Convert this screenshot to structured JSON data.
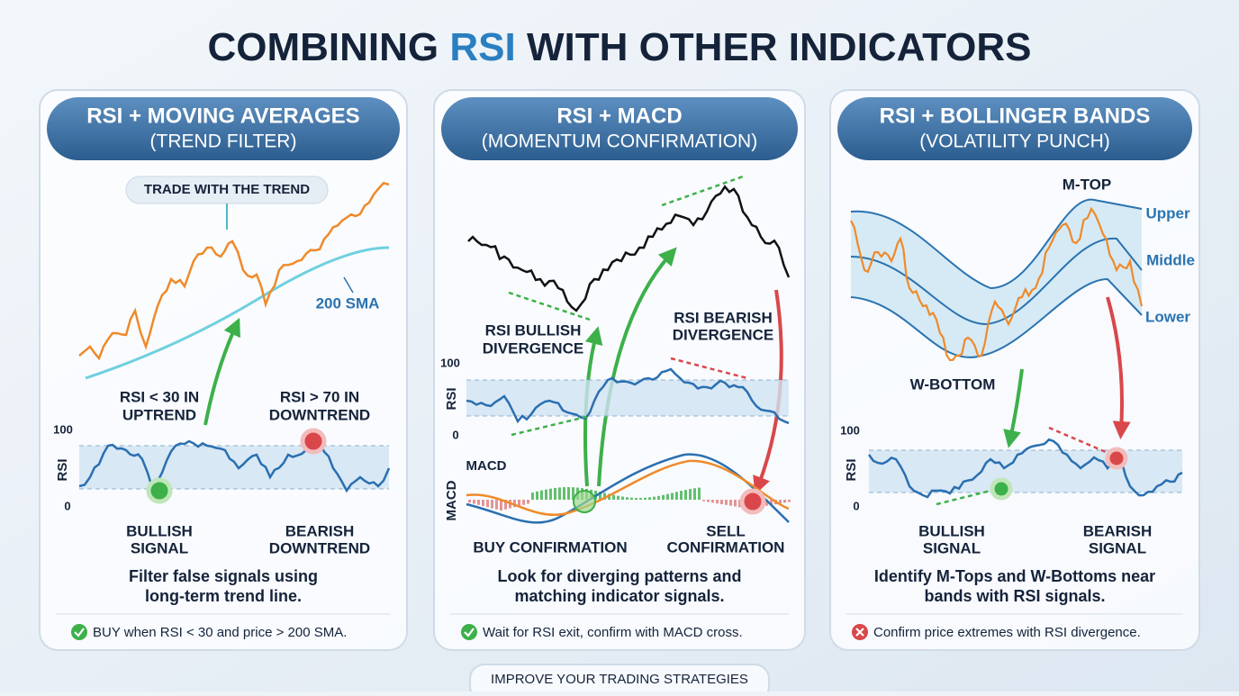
{
  "title": {
    "before": "COMBINING ",
    "highlight": "RSI",
    "after": " WITH OTHER INDICATORS"
  },
  "panels": [
    {
      "header": [
        "RSI + MOVING AVERAGES",
        "(TREND FILTER)"
      ],
      "labels": {
        "trend": "TRADE WITH THE TREND",
        "sma": "200 SMA",
        "left": [
          "RSI < 30 IN",
          "UPTREND"
        ],
        "right": [
          "RSI > 70 IN",
          "DOWNTREND"
        ],
        "axis": [
          "100",
          "RSI",
          "0"
        ],
        "bottom_left": [
          "BULLISH",
          "SIGNAL"
        ],
        "bottom_right": [
          "BEARISH",
          "DOWNTREND"
        ]
      },
      "description": [
        "Filter false signals using",
        "long-term trend line."
      ],
      "tip": "BUY when RSI < 30 and price > 200 SMA."
    },
    {
      "header": [
        "RSI + MACD",
        "(MOMENTUM CONFIRMATION)"
      ],
      "labels": {
        "left": [
          "RSI BULLISH",
          "DIVERGENCE"
        ],
        "right": [
          "RSI BEARISH",
          "DIVERGENCE"
        ],
        "axis": [
          "100",
          "RSI",
          "0"
        ],
        "macd": "MACD",
        "macd_axis": "MACD",
        "bottom_left": [
          "BUY CONFIRMATION"
        ],
        "bottom_right": [
          "SELL",
          "CONFIRMATION"
        ]
      },
      "description": [
        "Look for diverging patterns and",
        "matching indicator signals."
      ],
      "tip": "Wait for RSI exit, confirm with MACD cross."
    },
    {
      "header": [
        "RSI + BOLLINGER BANDS",
        "(VOLATILITY PUNCH)"
      ],
      "labels": {
        "mtop": "M-TOP",
        "upper": "Upper",
        "middle": "Middle",
        "lower": "Lower",
        "wbottom": "W-BOTTOM",
        "axis": [
          "100",
          "RSI",
          "0"
        ],
        "bottom_left": [
          "BULLISH",
          "SIGNAL"
        ],
        "bottom_right": [
          "BEARISH",
          "SIGNAL"
        ]
      },
      "description": [
        "Identify M-Tops and W-Bottoms near",
        "bands with RSI signals."
      ],
      "tip": "Confirm price extremes with RSI divergence."
    }
  ],
  "footer": "IMPROVE YOUR TRADING STRATEGIES"
}
